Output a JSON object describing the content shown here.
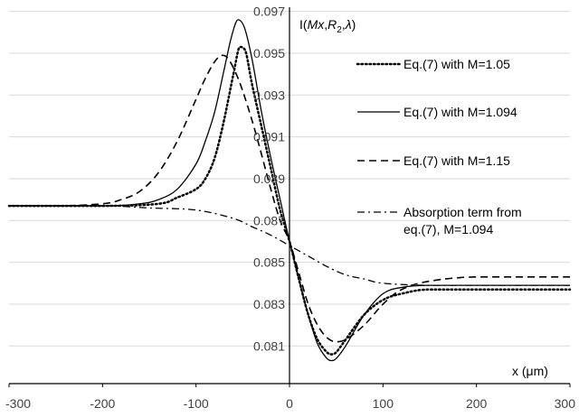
{
  "chart_data": {
    "type": "line",
    "title": "",
    "xlabel": "x (μm)",
    "ylabel": "I(Mx,R₂,λ)",
    "ylabel_parts": {
      "pre": "I(",
      "m": "Mx",
      "c1": ",",
      "r": "R",
      "sub": "2",
      "c2": ",",
      "lam": "λ",
      "post": ")"
    },
    "xlim": [
      -300,
      300
    ],
    "ylim": [
      0.0792,
      0.0972
    ],
    "x_ticks": [
      -300,
      -200,
      -100,
      0,
      100,
      200,
      300
    ],
    "y_ticks": [
      0.081,
      0.083,
      0.085,
      0.087,
      0.089,
      0.091,
      0.093,
      0.095,
      0.097
    ],
    "grid": "horizontal",
    "legend_position": "right",
    "series": [
      {
        "name": "Eq.(7) with M=1.05",
        "style": "dotted",
        "color": "#000000",
        "points": [
          [
            -300,
            0.0877
          ],
          [
            -200,
            0.0877
          ],
          [
            -140,
            0.0878
          ],
          [
            -120,
            0.0881
          ],
          [
            -100,
            0.0885
          ],
          [
            -90,
            0.089
          ],
          [
            -80,
            0.09
          ],
          [
            -70,
            0.0918
          ],
          [
            -60,
            0.094
          ],
          [
            -53,
            0.0953
          ],
          [
            -47,
            0.0951
          ],
          [
            -40,
            0.0935
          ],
          [
            -30,
            0.0915
          ],
          [
            -20,
            0.0895
          ],
          [
            -10,
            0.0875
          ],
          [
            0,
            0.086
          ],
          [
            10,
            0.0842
          ],
          [
            20,
            0.0825
          ],
          [
            30,
            0.0813
          ],
          [
            40,
            0.0807
          ],
          [
            45,
            0.0806
          ],
          [
            50,
            0.0807
          ],
          [
            60,
            0.0813
          ],
          [
            80,
            0.0825
          ],
          [
            100,
            0.0832
          ],
          [
            120,
            0.0835
          ],
          [
            150,
            0.0837
          ],
          [
            200,
            0.0837
          ],
          [
            300,
            0.0837
          ]
        ]
      },
      {
        "name": "Eq.(7) with M=1.094",
        "style": "solid",
        "color": "#000000",
        "points": [
          [
            -300,
            0.0877
          ],
          [
            -200,
            0.0877
          ],
          [
            -160,
            0.0878
          ],
          [
            -140,
            0.088
          ],
          [
            -120,
            0.0885
          ],
          [
            -100,
            0.0897
          ],
          [
            -90,
            0.0908
          ],
          [
            -80,
            0.0922
          ],
          [
            -70,
            0.0942
          ],
          [
            -62,
            0.0958
          ],
          [
            -55,
            0.0966
          ],
          [
            -48,
            0.0962
          ],
          [
            -40,
            0.0947
          ],
          [
            -30,
            0.0922
          ],
          [
            -20,
            0.09
          ],
          [
            -10,
            0.088
          ],
          [
            0,
            0.086
          ],
          [
            10,
            0.0842
          ],
          [
            20,
            0.0825
          ],
          [
            30,
            0.0811
          ],
          [
            40,
            0.0804
          ],
          [
            45,
            0.0803
          ],
          [
            50,
            0.0804
          ],
          [
            60,
            0.081
          ],
          [
            80,
            0.0825
          ],
          [
            100,
            0.0835
          ],
          [
            120,
            0.0838
          ],
          [
            150,
            0.0839
          ],
          [
            200,
            0.0839
          ],
          [
            300,
            0.0839
          ]
        ]
      },
      {
        "name": "Eq.(7) with M=1.15",
        "style": "dashed",
        "color": "#000000",
        "points": [
          [
            -300,
            0.0877
          ],
          [
            -250,
            0.0877
          ],
          [
            -200,
            0.0878
          ],
          [
            -180,
            0.088
          ],
          [
            -160,
            0.0884
          ],
          [
            -140,
            0.0893
          ],
          [
            -120,
            0.0908
          ],
          [
            -100,
            0.0928
          ],
          [
            -90,
            0.0938
          ],
          [
            -80,
            0.0946
          ],
          [
            -72,
            0.0949
          ],
          [
            -65,
            0.0947
          ],
          [
            -55,
            0.0938
          ],
          [
            -45,
            0.0925
          ],
          [
            -35,
            0.091
          ],
          [
            -20,
            0.0885
          ],
          [
            -10,
            0.087
          ],
          [
            0,
            0.086
          ],
          [
            10,
            0.0845
          ],
          [
            20,
            0.083
          ],
          [
            30,
            0.082
          ],
          [
            40,
            0.0814
          ],
          [
            50,
            0.0812
          ],
          [
            60,
            0.0813
          ],
          [
            80,
            0.082
          ],
          [
            100,
            0.083
          ],
          [
            120,
            0.0837
          ],
          [
            150,
            0.0841
          ],
          [
            200,
            0.0843
          ],
          [
            250,
            0.0843
          ],
          [
            300,
            0.0843
          ]
        ]
      },
      {
        "name": "Absorption term from eq.(7), M=1.094",
        "name_lines": [
          "Absorption term from",
          "eq.(7), M=1.094"
        ],
        "style": "dashdot",
        "color": "#000000",
        "points": [
          [
            -300,
            0.0877
          ],
          [
            -200,
            0.0877
          ],
          [
            -150,
            0.0876
          ],
          [
            -100,
            0.0875
          ],
          [
            -60,
            0.0871
          ],
          [
            -40,
            0.0867
          ],
          [
            -20,
            0.0863
          ],
          [
            0,
            0.0858
          ],
          [
            20,
            0.0853
          ],
          [
            40,
            0.0848
          ],
          [
            60,
            0.0844
          ],
          [
            80,
            0.0842
          ],
          [
            100,
            0.084
          ],
          [
            150,
            0.0839
          ],
          [
            200,
            0.0839
          ],
          [
            300,
            0.0839
          ]
        ]
      }
    ]
  }
}
